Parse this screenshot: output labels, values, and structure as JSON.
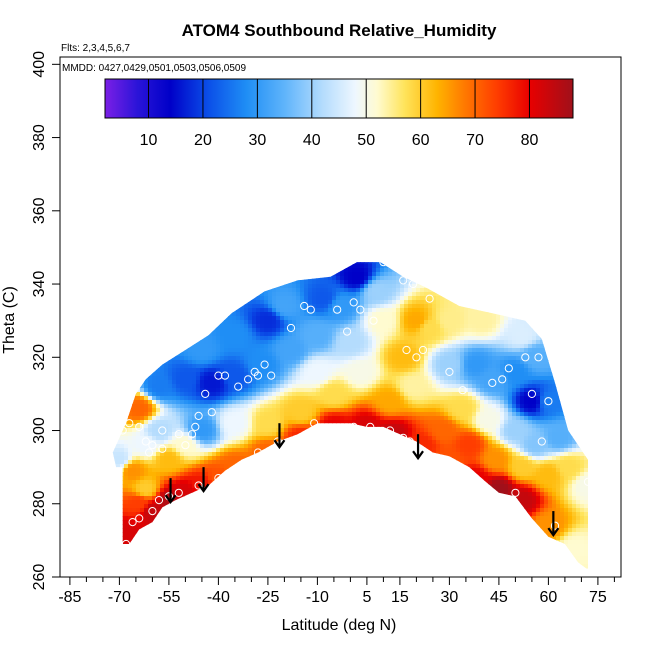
{
  "chart_data": {
    "type": "heatmap",
    "title": "ATOM4 Southbound Relative_Humidity",
    "flights_note": "Flts: 2,3,4,5,6,7",
    "dates_note": "MMDD: 0427,0429,0501,0503,0506,0509",
    "xlabel": "Latitude (deg N)",
    "ylabel": "Theta (C)",
    "xlim": [
      -88,
      82
    ],
    "ylim": [
      260,
      402
    ],
    "x_ticks": [
      "-85",
      "-70",
      "-55",
      "-40",
      "-25",
      "-10",
      "5",
      "15",
      "30",
      "45",
      "60",
      "75"
    ],
    "x_tick_values": [
      -85,
      -70,
      -55,
      -40,
      -25,
      -10,
      5,
      15,
      30,
      45,
      60,
      75
    ],
    "x_minor_ticks": [
      -80,
      -75,
      -65,
      -60,
      -50,
      -45,
      -35,
      -30,
      -20,
      -15,
      -5,
      0,
      10,
      20,
      25,
      35,
      40,
      50,
      55,
      65,
      70,
      80
    ],
    "y_ticks": [
      "260",
      "280",
      "300",
      "320",
      "340",
      "360",
      "380",
      "400"
    ],
    "y_tick_values": [
      260,
      280,
      300,
      320,
      340,
      360,
      380,
      400
    ],
    "colorbar": {
      "range": [
        2,
        88
      ],
      "ticks": [
        "10",
        "20",
        "30",
        "40",
        "50",
        "60",
        "70",
        "80"
      ],
      "tick_values": [
        10,
        20,
        30,
        40,
        50,
        60,
        70,
        80
      ],
      "stops": [
        {
          "v": 2,
          "c": "#7b1fe6"
        },
        {
          "v": 8,
          "c": "#2a14d8"
        },
        {
          "v": 14,
          "c": "#0000c8"
        },
        {
          "v": 21,
          "c": "#0b4fe8"
        },
        {
          "v": 28,
          "c": "#1f8ef5"
        },
        {
          "v": 35,
          "c": "#5fb4fb"
        },
        {
          "v": 42,
          "c": "#b4dcfd"
        },
        {
          "v": 48,
          "c": "#eef7ff"
        },
        {
          "v": 52,
          "c": "#fffbd0"
        },
        {
          "v": 57,
          "c": "#ffe45c"
        },
        {
          "v": 63,
          "c": "#ffb400"
        },
        {
          "v": 68,
          "c": "#ff7a00"
        },
        {
          "v": 74,
          "c": "#ff3d00"
        },
        {
          "v": 80,
          "c": "#e80000"
        },
        {
          "v": 88,
          "c": "#a0101a"
        }
      ]
    },
    "top_boundary": [
      [
        -69,
        269
      ],
      [
        -69,
        290
      ],
      [
        -71,
        290
      ],
      [
        -72,
        294
      ],
      [
        -68,
        302
      ],
      [
        -65,
        310
      ],
      [
        -62,
        314
      ],
      [
        -57,
        318
      ],
      [
        -50,
        322
      ],
      [
        -43,
        326
      ],
      [
        -36,
        332
      ],
      [
        -26,
        338
      ],
      [
        -16,
        341
      ],
      [
        -6,
        342
      ],
      [
        2,
        346
      ],
      [
        9,
        346
      ],
      [
        16,
        342
      ],
      [
        23,
        339
      ],
      [
        33,
        334
      ],
      [
        43,
        332
      ],
      [
        53,
        330
      ],
      [
        58,
        325
      ],
      [
        62,
        313
      ],
      [
        66,
        300
      ],
      [
        72,
        292
      ],
      [
        72,
        262
      ],
      [
        69,
        264
      ],
      [
        65,
        269
      ],
      [
        60,
        271
      ],
      [
        55,
        276
      ],
      [
        50,
        282
      ],
      [
        45,
        283
      ],
      [
        41,
        286
      ],
      [
        36,
        290
      ],
      [
        30,
        293
      ],
      [
        25,
        294
      ],
      [
        20,
        297
      ],
      [
        15,
        299
      ],
      [
        10,
        301
      ],
      [
        5,
        301
      ],
      [
        0,
        302
      ],
      [
        -10,
        302
      ],
      [
        -16,
        299
      ],
      [
        -22,
        297
      ],
      [
        -28,
        294
      ],
      [
        -33,
        292
      ],
      [
        -38,
        289
      ],
      [
        -43,
        285
      ],
      [
        -48,
        283
      ],
      [
        -53,
        281
      ],
      [
        -57,
        279
      ],
      [
        -60,
        275
      ],
      [
        -64,
        273
      ],
      [
        -67,
        269
      ]
    ],
    "rh_field": [
      {
        "lat": -68,
        "theta": 272,
        "rh": 82
      },
      {
        "lat": -64,
        "theta": 280,
        "rh": 74
      },
      {
        "lat": -60,
        "theta": 278,
        "rh": 84
      },
      {
        "lat": -55,
        "theta": 281,
        "rh": 86
      },
      {
        "lat": -50,
        "theta": 283,
        "rh": 82
      },
      {
        "lat": -45,
        "theta": 285,
        "rh": 78
      },
      {
        "lat": -40,
        "theta": 287,
        "rh": 72
      },
      {
        "lat": -35,
        "theta": 290,
        "rh": 70
      },
      {
        "lat": -25,
        "theta": 294,
        "rh": 70
      },
      {
        "lat": -15,
        "theta": 298,
        "rh": 76
      },
      {
        "lat": -5,
        "theta": 301,
        "rh": 80
      },
      {
        "lat": 5,
        "theta": 301,
        "rh": 82
      },
      {
        "lat": 13,
        "theta": 299,
        "rh": 84
      },
      {
        "lat": 22,
        "theta": 296,
        "rh": 76
      },
      {
        "lat": 30,
        "theta": 292,
        "rh": 72
      },
      {
        "lat": 38,
        "theta": 287,
        "rh": 80
      },
      {
        "lat": 45,
        "theta": 284,
        "rh": 88
      },
      {
        "lat": 52,
        "theta": 281,
        "rh": 84
      },
      {
        "lat": 60,
        "theta": 274,
        "rh": 66
      },
      {
        "lat": 68,
        "theta": 268,
        "rh": 52
      },
      {
        "lat": 72,
        "theta": 285,
        "rh": 50
      },
      {
        "lat": -70,
        "theta": 292,
        "rh": 44
      },
      {
        "lat": -66,
        "theta": 289,
        "rh": 66
      },
      {
        "lat": -62,
        "theta": 296,
        "rh": 48
      },
      {
        "lat": -64,
        "theta": 306,
        "rh": 70
      },
      {
        "lat": -58,
        "theta": 300,
        "rh": 42
      },
      {
        "lat": -55,
        "theta": 292,
        "rh": 62
      },
      {
        "lat": -50,
        "theta": 296,
        "rh": 52
      },
      {
        "lat": -45,
        "theta": 300,
        "rh": 30
      },
      {
        "lat": -35,
        "theta": 302,
        "rh": 48
      },
      {
        "lat": -25,
        "theta": 302,
        "rh": 58
      },
      {
        "lat": -15,
        "theta": 305,
        "rh": 60
      },
      {
        "lat": -5,
        "theta": 310,
        "rh": 58
      },
      {
        "lat": 3,
        "theta": 316,
        "rh": 50
      },
      {
        "lat": -58,
        "theta": 312,
        "rh": 26
      },
      {
        "lat": -50,
        "theta": 314,
        "rh": 22
      },
      {
        "lat": -42,
        "theta": 313,
        "rh": 16
      },
      {
        "lat": -35,
        "theta": 315,
        "rh": 22
      },
      {
        "lat": -27,
        "theta": 318,
        "rh": 28
      },
      {
        "lat": -18,
        "theta": 322,
        "rh": 32
      },
      {
        "lat": -10,
        "theta": 326,
        "rh": 34
      },
      {
        "lat": -45,
        "theta": 322,
        "rh": 30
      },
      {
        "lat": -35,
        "theta": 326,
        "rh": 28
      },
      {
        "lat": -25,
        "theta": 330,
        "rh": 18
      },
      {
        "lat": -20,
        "theta": 334,
        "rh": 32
      },
      {
        "lat": -8,
        "theta": 336,
        "rh": 22
      },
      {
        "lat": -3,
        "theta": 334,
        "rh": 30
      },
      {
        "lat": 2,
        "theta": 342,
        "rh": 14
      },
      {
        "lat": 8,
        "theta": 338,
        "rh": 40
      },
      {
        "lat": 10,
        "theta": 330,
        "rh": 52
      },
      {
        "lat": 16,
        "theta": 320,
        "rh": 62
      },
      {
        "lat": 19,
        "theta": 312,
        "rh": 54
      },
      {
        "lat": 20,
        "theta": 330,
        "rh": 64
      },
      {
        "lat": 24,
        "theta": 328,
        "rh": 58
      },
      {
        "lat": 30,
        "theta": 330,
        "rh": 55
      },
      {
        "lat": 30,
        "theta": 318,
        "rh": 40
      },
      {
        "lat": 38,
        "theta": 318,
        "rh": 30
      },
      {
        "lat": 43,
        "theta": 314,
        "rh": 32
      },
      {
        "lat": 50,
        "theta": 316,
        "rh": 28
      },
      {
        "lat": 55,
        "theta": 308,
        "rh": 14
      },
      {
        "lat": 60,
        "theta": 308,
        "rh": 26
      },
      {
        "lat": 56,
        "theta": 320,
        "rh": 34
      },
      {
        "lat": 52,
        "theta": 326,
        "rh": 46
      },
      {
        "lat": 40,
        "theta": 330,
        "rh": 54
      },
      {
        "lat": 34,
        "theta": 306,
        "rh": 58
      },
      {
        "lat": 42,
        "theta": 303,
        "rh": 50
      },
      {
        "lat": 50,
        "theta": 300,
        "rh": 40
      },
      {
        "lat": 56,
        "theta": 296,
        "rh": 38
      },
      {
        "lat": 63,
        "theta": 298,
        "rh": 34
      },
      {
        "lat": 66,
        "theta": 290,
        "rh": 58
      },
      {
        "lat": 60,
        "theta": 288,
        "rh": 62
      },
      {
        "lat": 28,
        "theta": 300,
        "rh": 70
      },
      {
        "lat": 36,
        "theta": 296,
        "rh": 74
      },
      {
        "lat": 44,
        "theta": 292,
        "rh": 66
      },
      {
        "lat": 52,
        "theta": 290,
        "rh": 60
      },
      {
        "lat": 12,
        "theta": 308,
        "rh": 64
      },
      {
        "lat": 0,
        "theta": 324,
        "rh": 42
      },
      {
        "lat": -10,
        "theta": 316,
        "rh": 48
      },
      {
        "lat": -62,
        "theta": 284,
        "rh": 60
      }
    ],
    "observation_points": [
      [
        -68,
        269
      ],
      [
        -66,
        275
      ],
      [
        -64,
        276
      ],
      [
        -60,
        278
      ],
      [
        -58,
        281
      ],
      [
        -55,
        282
      ],
      [
        -52,
        283
      ],
      [
        -46,
        285
      ],
      [
        -40,
        287
      ],
      [
        -34,
        290
      ],
      [
        -28,
        294
      ],
      [
        -22,
        297
      ],
      [
        -11,
        302
      ],
      [
        1,
        301
      ],
      [
        6,
        301
      ],
      [
        12,
        300
      ],
      [
        16,
        298
      ],
      [
        18,
        297
      ],
      [
        28,
        291
      ],
      [
        37,
        287
      ],
      [
        43,
        280
      ],
      [
        50,
        283
      ],
      [
        62,
        274
      ],
      [
        72,
        286
      ],
      [
        -69,
        300
      ],
      [
        -67,
        302
      ],
      [
        -64,
        301
      ],
      [
        -62,
        297
      ],
      [
        -60,
        296
      ],
      [
        -57,
        300
      ],
      [
        -52,
        299
      ],
      [
        -47,
        301
      ],
      [
        -46,
        304
      ],
      [
        -42,
        305
      ],
      [
        -44,
        310
      ],
      [
        -40,
        315
      ],
      [
        -38,
        315
      ],
      [
        -34,
        312
      ],
      [
        -31,
        314
      ],
      [
        -29,
        316
      ],
      [
        -26,
        318
      ],
      [
        -24,
        315
      ],
      [
        -28,
        315
      ],
      [
        -18,
        328
      ],
      [
        -12,
        333
      ],
      [
        -14,
        334
      ],
      [
        -4,
        333
      ],
      [
        1,
        335
      ],
      [
        3,
        333
      ],
      [
        7,
        330
      ],
      [
        -1,
        327
      ],
      [
        10,
        346
      ],
      [
        16,
        341
      ],
      [
        19,
        340
      ],
      [
        20,
        342
      ],
      [
        24,
        336
      ],
      [
        17,
        322
      ],
      [
        20,
        320
      ],
      [
        22,
        322
      ],
      [
        30,
        316
      ],
      [
        34,
        311
      ],
      [
        43,
        313
      ],
      [
        46,
        314
      ],
      [
        48,
        317
      ],
      [
        53,
        320
      ],
      [
        55,
        310
      ],
      [
        58,
        297
      ],
      [
        57,
        320
      ],
      [
        60,
        308
      ],
      [
        70,
        298
      ],
      [
        -61,
        294
      ],
      [
        -57,
        295
      ],
      [
        -48,
        299
      ],
      [
        -50,
        296
      ]
    ],
    "arrows": [
      [
        -54.5,
        287
      ],
      [
        -44.5,
        290
      ],
      [
        -21.5,
        302
      ],
      [
        20.5,
        299
      ],
      [
        61.5,
        278
      ]
    ]
  }
}
